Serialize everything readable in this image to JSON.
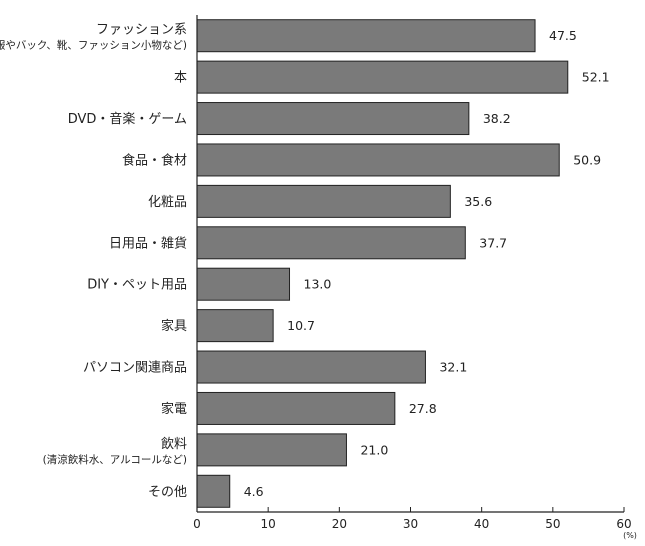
{
  "chart_data": {
    "type": "bar",
    "orientation": "horizontal",
    "title": "",
    "xlabel": "",
    "ylabel": "",
    "unit": "(%)",
    "xlim": [
      0,
      60
    ],
    "xticks": [
      0,
      10,
      20,
      30,
      40,
      50,
      60
    ],
    "grid": false,
    "categories": [
      {
        "label": "ファッション系",
        "sub": "(服やバック、靴、ファッション小物など)"
      },
      {
        "label": "本",
        "sub": ""
      },
      {
        "label": "DVD・音楽・ゲーム",
        "sub": ""
      },
      {
        "label": "食品・食材",
        "sub": ""
      },
      {
        "label": "化粧品",
        "sub": ""
      },
      {
        "label": "日用品・雑貨",
        "sub": ""
      },
      {
        "label": "DIY・ペット用品",
        "sub": ""
      },
      {
        "label": "家具",
        "sub": ""
      },
      {
        "label": "パソコン関連商品",
        "sub": ""
      },
      {
        "label": "家電",
        "sub": ""
      },
      {
        "label": "飲料",
        "sub": "(清涼飲料水、アルコールなど)"
      },
      {
        "label": "その他",
        "sub": ""
      }
    ],
    "values": [
      47.5,
      52.1,
      38.2,
      50.9,
      35.6,
      37.7,
      13.0,
      10.7,
      32.1,
      27.8,
      21.0,
      4.6
    ],
    "value_labels": [
      "47.5",
      "52.1",
      "38.2",
      "50.9",
      "35.6",
      "37.7",
      "13.0",
      "10.7",
      "32.1",
      "27.8",
      "21.0",
      "4.6"
    ],
    "bar_color": "#7a7a7a"
  }
}
